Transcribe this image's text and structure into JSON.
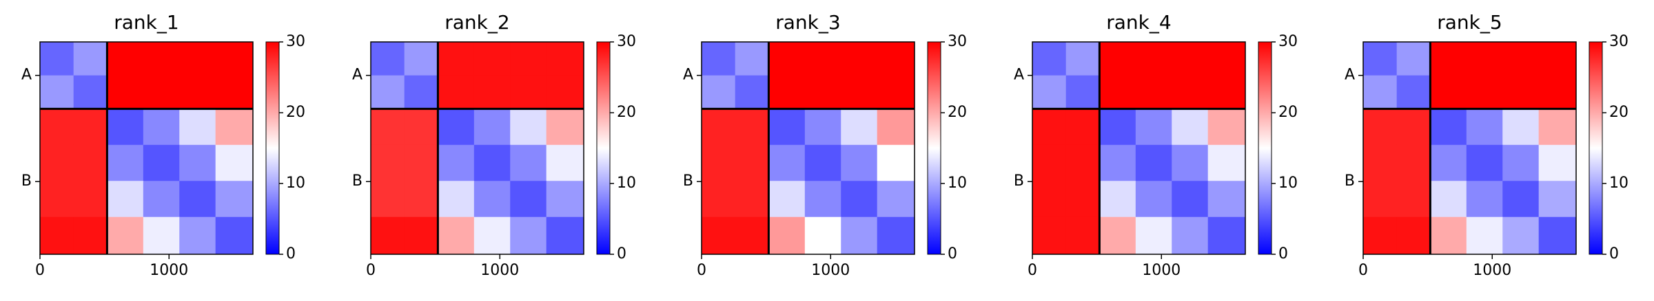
{
  "chart_data": [
    {
      "type": "heatmap",
      "title": "rank_1",
      "colormap": "bwr",
      "clim": [
        0,
        30
      ],
      "cticks": [
        0,
        10,
        20,
        30
      ],
      "xbins": [
        0,
        260,
        520,
        800,
        1080,
        1360,
        1650
      ],
      "ybins": [
        0,
        260,
        520,
        800,
        1080,
        1360,
        1650
      ],
      "xlim": [
        0,
        1650
      ],
      "ylim": [
        1650,
        0
      ],
      "xticks": [
        0,
        1000
      ],
      "yticks": [
        {
          "value": 260,
          "label": "A"
        },
        {
          "value": 1085,
          "label": "B"
        }
      ],
      "chain_breaks": [
        520
      ],
      "values": [
        [
          6,
          9,
          30,
          30,
          30,
          30
        ],
        [
          9,
          6,
          30,
          30,
          30,
          30
        ],
        [
          28,
          28,
          5,
          8,
          13,
          20
        ],
        [
          28,
          28,
          8,
          5,
          8,
          14
        ],
        [
          28,
          28,
          13,
          8,
          5,
          9
        ],
        [
          29,
          29,
          20,
          14,
          9,
          5
        ]
      ]
    },
    {
      "type": "heatmap",
      "title": "rank_2",
      "colormap": "bwr",
      "clim": [
        0,
        30
      ],
      "cticks": [
        0,
        10,
        20,
        30
      ],
      "xbins": [
        0,
        260,
        520,
        800,
        1080,
        1360,
        1650
      ],
      "ybins": [
        0,
        260,
        520,
        800,
        1080,
        1360,
        1650
      ],
      "xlim": [
        0,
        1650
      ],
      "ylim": [
        1650,
        0
      ],
      "xticks": [
        0,
        1000
      ],
      "yticks": [
        {
          "value": 260,
          "label": "A"
        },
        {
          "value": 1085,
          "label": "B"
        }
      ],
      "chain_breaks": [
        520
      ],
      "values": [
        [
          6,
          9,
          29,
          29,
          29,
          29
        ],
        [
          9,
          6,
          29,
          29,
          29,
          29
        ],
        [
          27,
          27,
          5,
          8,
          13,
          20
        ],
        [
          27,
          27,
          8,
          5,
          8,
          14
        ],
        [
          27,
          27,
          13,
          8,
          5,
          9
        ],
        [
          29,
          29,
          20,
          14,
          9,
          5
        ]
      ]
    },
    {
      "type": "heatmap",
      "title": "rank_3",
      "colormap": "bwr",
      "clim": [
        0,
        30
      ],
      "cticks": [
        0,
        10,
        20,
        30
      ],
      "xbins": [
        0,
        260,
        520,
        800,
        1080,
        1360,
        1650
      ],
      "ybins": [
        0,
        260,
        520,
        800,
        1080,
        1360,
        1650
      ],
      "xlim": [
        0,
        1650
      ],
      "ylim": [
        1650,
        0
      ],
      "xticks": [
        0,
        1000
      ],
      "yticks": [
        {
          "value": 260,
          "label": "A"
        },
        {
          "value": 1085,
          "label": "B"
        }
      ],
      "chain_breaks": [
        520
      ],
      "values": [
        [
          6,
          9,
          30,
          30,
          30,
          30
        ],
        [
          9,
          6,
          30,
          30,
          30,
          30
        ],
        [
          28,
          28,
          5,
          8,
          13,
          21
        ],
        [
          28,
          28,
          8,
          5,
          8,
          15
        ],
        [
          28,
          28,
          13,
          8,
          5,
          9
        ],
        [
          29,
          29,
          21,
          15,
          9,
          5
        ]
      ]
    },
    {
      "type": "heatmap",
      "title": "rank_4",
      "colormap": "bwr",
      "clim": [
        0,
        30
      ],
      "cticks": [
        0,
        10,
        20,
        30
      ],
      "xbins": [
        0,
        260,
        520,
        800,
        1080,
        1360,
        1650
      ],
      "ybins": [
        0,
        260,
        520,
        800,
        1080,
        1360,
        1650
      ],
      "xlim": [
        0,
        1650
      ],
      "ylim": [
        1650,
        0
      ],
      "xticks": [
        0,
        1000
      ],
      "yticks": [
        {
          "value": 260,
          "label": "A"
        },
        {
          "value": 1085,
          "label": "B"
        }
      ],
      "chain_breaks": [
        520
      ],
      "values": [
        [
          6,
          9,
          30,
          30,
          30,
          30
        ],
        [
          9,
          6,
          30,
          30,
          30,
          30
        ],
        [
          29,
          29,
          5,
          8,
          13,
          20
        ],
        [
          29,
          29,
          8,
          5,
          8,
          14
        ],
        [
          29,
          29,
          13,
          8,
          5,
          9
        ],
        [
          29,
          29,
          20,
          14,
          9,
          5
        ]
      ]
    },
    {
      "type": "heatmap",
      "title": "rank_5",
      "colormap": "bwr",
      "clim": [
        0,
        30
      ],
      "cticks": [
        0,
        10,
        20,
        30
      ],
      "xbins": [
        0,
        260,
        520,
        800,
        1080,
        1360,
        1650
      ],
      "ybins": [
        0,
        260,
        520,
        800,
        1080,
        1360,
        1650
      ],
      "xlim": [
        0,
        1650
      ],
      "ylim": [
        1650,
        0
      ],
      "xticks": [
        0,
        1000
      ],
      "yticks": [
        {
          "value": 260,
          "label": "A"
        },
        {
          "value": 1085,
          "label": "B"
        }
      ],
      "chain_breaks": [
        520
      ],
      "values": [
        [
          6,
          9,
          30,
          30,
          30,
          30
        ],
        [
          9,
          6,
          30,
          30,
          30,
          30
        ],
        [
          28,
          28,
          5,
          8,
          13,
          20
        ],
        [
          28,
          28,
          8,
          5,
          8,
          14
        ],
        [
          28,
          28,
          13,
          8,
          5,
          10
        ],
        [
          29,
          29,
          20,
          14,
          10,
          5
        ]
      ]
    }
  ]
}
